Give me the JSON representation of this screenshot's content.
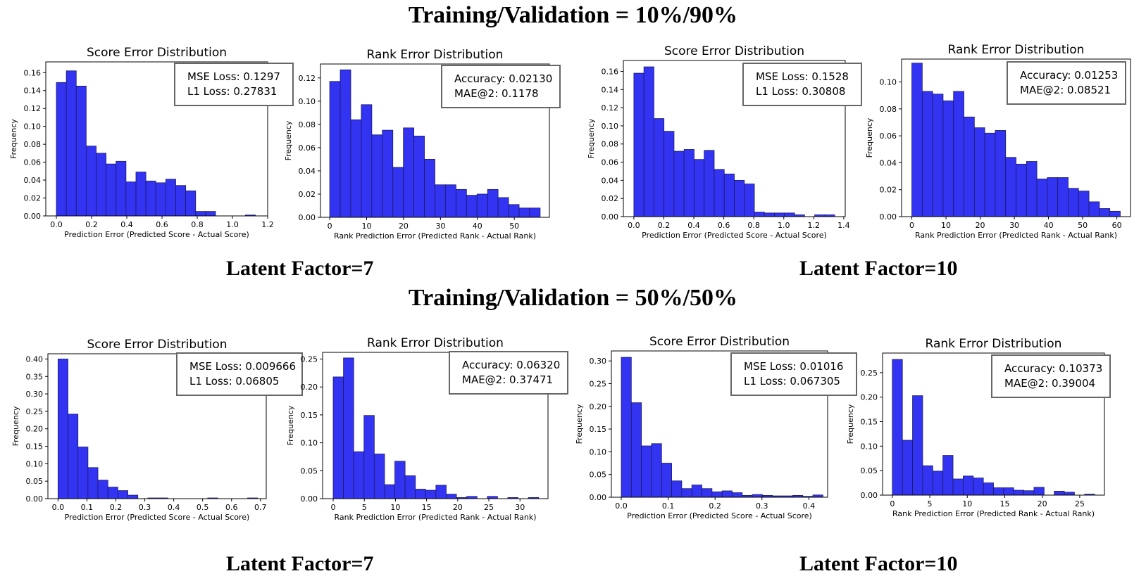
{
  "sections": [
    {
      "title": "Training/Validation = 10%/90%",
      "left_label": "Latent Factor=7",
      "right_label": "Latent Factor=10"
    },
    {
      "title": "Training/Validation = 50%/50%",
      "left_label": "Latent Factor=7",
      "right_label": "Latent Factor=10"
    }
  ],
  "colors": {
    "bar": "#3333f2",
    "bar_edge": "#1a1a66",
    "annotation_border": "#666666"
  },
  "chart_data": [
    {
      "type": "bar",
      "title": "Score Error Distribution",
      "xlabel": "Prediction Error (Predicted Score - Actual Score)",
      "ylabel": "Frequency",
      "xlim": [
        -0.06,
        1.2
      ],
      "ylim": [
        0,
        0.172
      ],
      "xticks": [
        0.0,
        0.2,
        0.4,
        0.6,
        0.8,
        1.0,
        1.2
      ],
      "xtick_labels": [
        "0.0",
        "0.2",
        "0.4",
        "0.6",
        "0.8",
        "1.0",
        "1.2"
      ],
      "yticks": [
        0,
        0.02,
        0.04,
        0.06,
        0.08,
        0.1,
        0.12,
        0.14,
        0.16
      ],
      "ytick_labels": [
        "0.00",
        "0.02",
        "0.04",
        "0.06",
        "0.08",
        "0.10",
        "0.12",
        "0.14",
        "0.16"
      ],
      "bin_start": 0.0,
      "bin_width": 0.0565,
      "values": [
        0.149,
        0.162,
        0.145,
        0.078,
        0.07,
        0.058,
        0.061,
        0.038,
        0.049,
        0.039,
        0.037,
        0.041,
        0.034,
        0.028,
        0.005,
        0.005,
        0,
        0,
        0,
        0.001
      ],
      "annotation": [
        "MSE Loss: 0.1297",
        "L1 Loss: 0.27831"
      ],
      "annotation_position": "top-right"
    },
    {
      "type": "bar",
      "title": "Rank Error Distribution",
      "xlabel": "Rank Prediction Error (Predicted Rank - Actual Rank)",
      "ylabel": "Frequency",
      "xlim": [
        -2.5,
        59.5
      ],
      "ylim": [
        0,
        0.132
      ],
      "xticks": [
        0,
        10,
        20,
        30,
        40,
        50
      ],
      "xtick_labels": [
        "0",
        "10",
        "20",
        "30",
        "40",
        "50"
      ],
      "yticks": [
        0,
        0.02,
        0.04,
        0.06,
        0.08,
        0.1,
        0.12
      ],
      "ytick_labels": [
        "0.00",
        "0.02",
        "0.04",
        "0.06",
        "0.08",
        "0.10",
        "0.12"
      ],
      "bin_start": 0.0,
      "bin_width": 2.85,
      "values": [
        0.117,
        0.127,
        0.084,
        0.097,
        0.071,
        0.075,
        0.043,
        0.077,
        0.07,
        0.05,
        0.028,
        0.028,
        0.024,
        0.019,
        0.02,
        0.024,
        0.017,
        0.011,
        0.008,
        0.008
      ],
      "annotation": [
        "Accuracy: 0.02130",
        "MAE@2: 0.1178"
      ],
      "annotation_position": "top-right"
    },
    {
      "type": "bar",
      "title": "Score Error Distribution",
      "xlabel": "Prediction Error (Predicted Score - Actual Score)",
      "ylabel": "Frequency",
      "xlim": [
        -0.07,
        1.41
      ],
      "ylim": [
        0,
        0.172
      ],
      "xticks": [
        0.0,
        0.2,
        0.4,
        0.6,
        0.8,
        1.0,
        1.2,
        1.4
      ],
      "xtick_labels": [
        "0.0",
        "0.2",
        "0.4",
        "0.6",
        "0.8",
        "1.0",
        "1.2",
        "1.4"
      ],
      "yticks": [
        0,
        0.02,
        0.04,
        0.06,
        0.08,
        0.1,
        0.12,
        0.14,
        0.16
      ],
      "ytick_labels": [
        "0.00",
        "0.02",
        "0.04",
        "0.06",
        "0.08",
        "0.10",
        "0.12",
        "0.14",
        "0.16"
      ],
      "bin_start": 0.0,
      "bin_width": 0.067,
      "values": [
        0.158,
        0.165,
        0.108,
        0.094,
        0.072,
        0.074,
        0.063,
        0.073,
        0.052,
        0.047,
        0.04,
        0.036,
        0.005,
        0.004,
        0.004,
        0.004,
        0.002,
        0,
        0.002,
        0.002
      ],
      "annotation": [
        "MSE Loss: 0.1528",
        "L1 Loss: 0.30808"
      ],
      "annotation_position": "top-right"
    },
    {
      "type": "bar",
      "title": "Rank Error Distribution",
      "xlabel": "Rank Prediction Error (Predicted Rank - Actual Rank)",
      "ylabel": "Frequency",
      "xlim": [
        -3,
        64
      ],
      "ylim": [
        0,
        0.117
      ],
      "xticks": [
        0,
        10,
        20,
        30,
        40,
        50,
        60
      ],
      "xtick_labels": [
        "0",
        "10",
        "20",
        "30",
        "40",
        "50",
        "60"
      ],
      "yticks": [
        0,
        0.02,
        0.04,
        0.06,
        0.08,
        0.1
      ],
      "ytick_labels": [
        "0.00",
        "0.02",
        "0.04",
        "0.06",
        "0.08",
        "0.10"
      ],
      "bin_start": 0.0,
      "bin_width": 3.05,
      "values": [
        0.114,
        0.093,
        0.091,
        0.086,
        0.093,
        0.074,
        0.066,
        0.062,
        0.064,
        0.044,
        0.039,
        0.041,
        0.028,
        0.029,
        0.029,
        0.021,
        0.019,
        0.011,
        0.006,
        0.004
      ],
      "annotation": [
        "Accuracy: 0.01253",
        "MAE@2: 0.08521"
      ],
      "annotation_position": "top-right"
    },
    {
      "type": "bar",
      "title": "Score Error Distribution",
      "xlabel": "Prediction Error (Predicted Score - Actual Score)",
      "ylabel": "Frequency",
      "xlim": [
        -0.035,
        0.72
      ],
      "ylim": [
        0,
        0.415
      ],
      "xticks": [
        0.0,
        0.1,
        0.2,
        0.3,
        0.4,
        0.5,
        0.6,
        0.7
      ],
      "xtick_labels": [
        "0.0",
        "0.1",
        "0.2",
        "0.3",
        "0.4",
        "0.5",
        "0.6",
        "0.7"
      ],
      "yticks": [
        0,
        0.05,
        0.1,
        0.15,
        0.2,
        0.25,
        0.3,
        0.35,
        0.4
      ],
      "ytick_labels": [
        "0.00",
        "0.05",
        "0.10",
        "0.15",
        "0.20",
        "0.25",
        "0.30",
        "0.35",
        "0.40"
      ],
      "bin_start": 0.0,
      "bin_width": 0.0345,
      "values": [
        0.4,
        0.242,
        0.148,
        0.089,
        0.053,
        0.033,
        0.023,
        0.01,
        0,
        0.002,
        0.002,
        0,
        0,
        0,
        0,
        0.002,
        0,
        0,
        0,
        0.002
      ],
      "annotation": [
        "MSE Loss: 0.009666",
        "L1 Loss: 0.06805"
      ],
      "annotation_position": "top-right"
    },
    {
      "type": "bar",
      "title": "Rank Error Distribution",
      "xlabel": "Rank Prediction Error (Predicted Rank - Actual Rank)",
      "ylabel": "Frequency",
      "xlim": [
        -1.7,
        34.5
      ],
      "ylim": [
        0,
        0.262
      ],
      "xticks": [
        0,
        5,
        10,
        15,
        20,
        25,
        30
      ],
      "xtick_labels": [
        "0",
        "5",
        "10",
        "15",
        "20",
        "25",
        "30"
      ],
      "yticks": [
        0,
        0.05,
        0.1,
        0.15,
        0.2,
        0.25
      ],
      "ytick_labels": [
        "0.00",
        "0.05",
        "0.10",
        "0.15",
        "0.20",
        "0.25"
      ],
      "bin_start": 0.0,
      "bin_width": 1.65,
      "values": [
        0.218,
        0.252,
        0.084,
        0.149,
        0.08,
        0.025,
        0.067,
        0.041,
        0.017,
        0.015,
        0.024,
        0.008,
        0.002,
        0.004,
        0,
        0.004,
        0,
        0.002,
        0,
        0.002
      ],
      "annotation": [
        "Accuracy: 0.06320",
        "MAE@2: 0.37471"
      ],
      "annotation_position": "top-right"
    },
    {
      "type": "bar",
      "title": "Score Error Distribution",
      "xlabel": "Prediction Error (Predicted Score - Actual Score)",
      "ylabel": "Frequency",
      "xlim": [
        -0.021,
        0.44
      ],
      "ylim": [
        0,
        0.322
      ],
      "xticks": [
        0.0,
        0.1,
        0.2,
        0.3,
        0.4
      ],
      "xtick_labels": [
        "0.0",
        "0.1",
        "0.2",
        "0.3",
        "0.4"
      ],
      "yticks": [
        0,
        0.05,
        0.1,
        0.15,
        0.2,
        0.25,
        0.3
      ],
      "ytick_labels": [
        "0.00",
        "0.05",
        "0.10",
        "0.15",
        "0.20",
        "0.25",
        "0.30"
      ],
      "bin_start": 0.0,
      "bin_width": 0.0215,
      "values": [
        0.308,
        0.208,
        0.113,
        0.118,
        0.075,
        0.036,
        0.019,
        0.027,
        0.019,
        0.012,
        0.014,
        0.01,
        0.004,
        0.006,
        0.004,
        0.003,
        0.003,
        0.004,
        0.002,
        0.005
      ],
      "annotation": [
        "MSE Loss: 0.01016",
        "L1 Loss: 0.067305"
      ],
      "annotation_position": "top-right"
    },
    {
      "type": "bar",
      "title": "Rank Error Distribution",
      "xlabel": "Rank Prediction Error (Predicted Rank - Actual Rank)",
      "ylabel": "Frequency",
      "xlim": [
        -1.3,
        28.3
      ],
      "ylim": [
        0,
        0.29
      ],
      "xticks": [
        0,
        5,
        10,
        15,
        20,
        25
      ],
      "xtick_labels": [
        "0",
        "5",
        "10",
        "15",
        "20",
        "25"
      ],
      "yticks": [
        0,
        0.05,
        0.1,
        0.15,
        0.2,
        0.25
      ],
      "ytick_labels": [
        "0.00",
        "0.05",
        "0.10",
        "0.15",
        "0.20",
        "0.25"
      ],
      "bin_start": 0.0,
      "bin_width": 1.35,
      "values": [
        0.277,
        0.112,
        0.203,
        0.06,
        0.049,
        0.081,
        0.033,
        0.039,
        0.035,
        0.025,
        0.015,
        0.015,
        0.01,
        0.009,
        0.016,
        0,
        0.008,
        0.006,
        0,
        0.002
      ],
      "annotation": [
        "Accuracy: 0.10373",
        "MAE@2: 0.39004"
      ],
      "annotation_position": "top-right"
    }
  ]
}
